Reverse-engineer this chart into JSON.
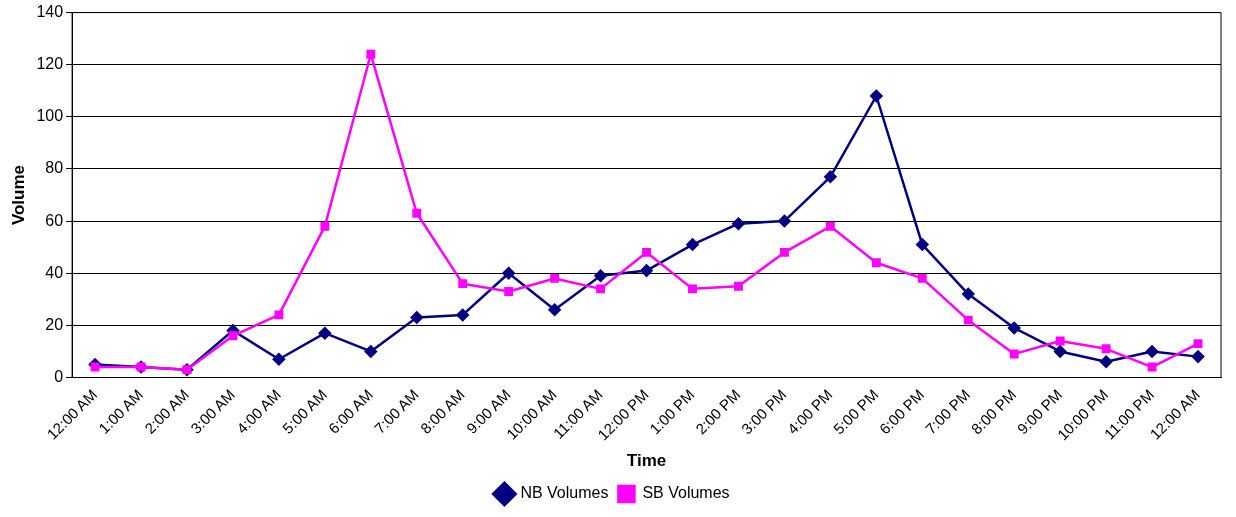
{
  "chart_data": {
    "type": "line",
    "xlabel": "Time",
    "ylabel": "Volume",
    "categories": [
      "12:00 AM",
      "1:00 AM",
      "2:00 AM",
      "3:00 AM",
      "4:00 AM",
      "5:00 AM",
      "6:00 AM",
      "7:00 AM",
      "8:00 AM",
      "9:00 AM",
      "10:00 AM",
      "11:00 AM",
      "12:00 PM",
      "1:00 PM",
      "2:00 PM",
      "3:00 PM",
      "4:00 PM",
      "5:00 PM",
      "6:00 PM",
      "7:00 PM",
      "8:00 PM",
      "9:00 PM",
      "10:00 PM",
      "11:00 PM",
      "12:00 AM"
    ],
    "series": [
      {
        "name": "NB Volumes",
        "color": "#000080",
        "marker": "diamond",
        "values": [
          5,
          4,
          3,
          18,
          7,
          17,
          10,
          23,
          24,
          40,
          26,
          39,
          41,
          51,
          59,
          60,
          77,
          108,
          51,
          32,
          19,
          10,
          6,
          10,
          8
        ]
      },
      {
        "name": "SB Volumes",
        "color": "#ff00ff",
        "marker": "square",
        "values": [
          4,
          4,
          3,
          16,
          24,
          58,
          124,
          63,
          36,
          33,
          38,
          34,
          48,
          34,
          35,
          48,
          58,
          44,
          38,
          22,
          9,
          14,
          11,
          4,
          13
        ]
      }
    ],
    "ylim": [
      0,
      140
    ],
    "yticks": [
      0,
      20,
      40,
      60,
      80,
      100,
      120,
      140
    ],
    "grid": "y",
    "legend": "bottom",
    "line_style": "solid"
  }
}
